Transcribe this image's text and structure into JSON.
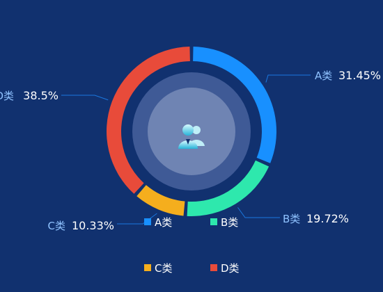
{
  "chart_data": {
    "type": "pie",
    "title": "",
    "categories": [
      "A类",
      "B类",
      "C类",
      "D类"
    ],
    "values": [
      31.45,
      19.72,
      10.33,
      38.5
    ],
    "value_labels": [
      "31.45%",
      "19.72%",
      "10.33%",
      "38.5%"
    ],
    "colors": [
      "#1890ff",
      "#2ee8ad",
      "#f5ae1d",
      "#e84b3a"
    ],
    "donut": true,
    "legend": {
      "placement": "bottom",
      "items": [
        "A类",
        "B类",
        "C类",
        "D类"
      ]
    },
    "center_icon": "user-group-icon"
  },
  "colors": {
    "background": "#11316f",
    "label_name": "#8fc2ff",
    "label_value": "#ffffff",
    "leader_line": "#1b78e0",
    "inner_disc": "#3f5a96",
    "center_disc": "#6f84b3"
  }
}
